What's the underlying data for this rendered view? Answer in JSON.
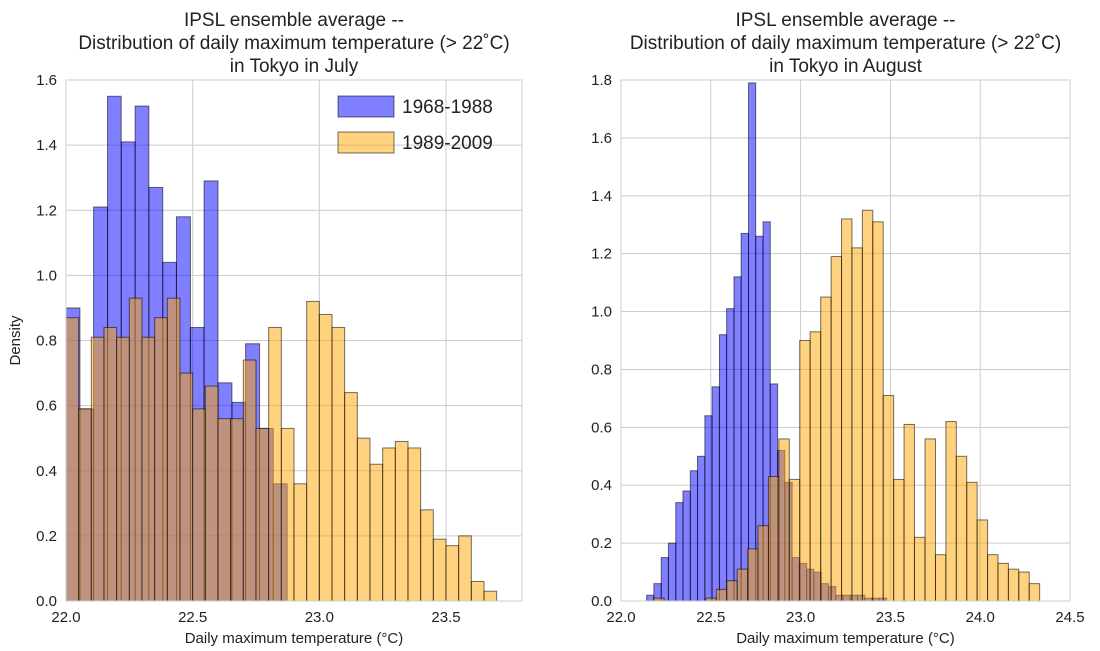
{
  "chart_data": [
    {
      "type": "bar",
      "title": [
        "IPSL ensemble average --",
        "Distribution of daily maximum temperature (> 22˚C)",
        "in Tokyo in July"
      ],
      "xlabel": "Daily maximum temperature (°C)",
      "ylabel": "Density",
      "xlim": [
        22.0,
        23.8
      ],
      "ylim": [
        0.0,
        1.6
      ],
      "xticks": [
        22.0,
        22.5,
        23.0,
        23.5
      ],
      "xtick_labels": [
        "22.0",
        "22.5",
        "23.0",
        "23.5"
      ],
      "yticks": [
        0.0,
        0.2,
        0.4,
        0.6,
        0.8,
        1.0,
        1.2,
        1.4,
        1.6
      ],
      "ytick_labels": [
        "0.0",
        "0.2",
        "0.4",
        "0.6",
        "0.8",
        "1.0",
        "1.2",
        "1.4",
        "1.6"
      ],
      "grid": true,
      "legend": {
        "placement": "top-right",
        "entries": [
          "1968-1988",
          "1989-2009"
        ]
      },
      "series": [
        {
          "name": "1968-1988",
          "color": "#0000ff",
          "bins": [
            [
              22.0,
              22.055
            ],
            [
              22.055,
              22.109
            ],
            [
              22.109,
              22.164
            ],
            [
              22.164,
              22.218
            ],
            [
              22.218,
              22.273
            ],
            [
              22.273,
              22.327
            ],
            [
              22.327,
              22.382
            ],
            [
              22.382,
              22.436
            ],
            [
              22.436,
              22.491
            ],
            [
              22.491,
              22.545
            ],
            [
              22.545,
              22.6
            ],
            [
              22.6,
              22.655
            ],
            [
              22.655,
              22.709
            ],
            [
              22.709,
              22.764
            ],
            [
              22.764,
              22.818
            ],
            [
              22.818,
              22.873
            ]
          ],
          "values": [
            0.9,
            0.59,
            1.21,
            1.55,
            1.41,
            1.52,
            1.27,
            1.04,
            1.18,
            0.84,
            1.29,
            0.67,
            0.61,
            0.79,
            0.53,
            0.36
          ]
        },
        {
          "name": "1989-2009",
          "color": "#ffa500",
          "bins": [
            [
              22.0,
              22.05
            ],
            [
              22.05,
              22.1
            ],
            [
              22.1,
              22.15
            ],
            [
              22.15,
              22.2
            ],
            [
              22.2,
              22.25
            ],
            [
              22.25,
              22.3
            ],
            [
              22.3,
              22.35
            ],
            [
              22.35,
              22.4
            ],
            [
              22.4,
              22.45
            ],
            [
              22.45,
              22.5
            ],
            [
              22.5,
              22.55
            ],
            [
              22.55,
              22.6
            ],
            [
              22.6,
              22.65
            ],
            [
              22.65,
              22.7
            ],
            [
              22.7,
              22.75
            ],
            [
              22.75,
              22.8
            ],
            [
              22.8,
              22.85
            ],
            [
              22.85,
              22.9
            ],
            [
              22.9,
              22.95
            ],
            [
              22.95,
              23.0
            ],
            [
              23.0,
              23.05
            ],
            [
              23.05,
              23.1
            ],
            [
              23.1,
              23.15
            ],
            [
              23.15,
              23.2
            ],
            [
              23.2,
              23.25
            ],
            [
              23.25,
              23.3
            ],
            [
              23.3,
              23.35
            ],
            [
              23.35,
              23.4
            ],
            [
              23.4,
              23.45
            ],
            [
              23.45,
              23.5
            ],
            [
              23.5,
              23.55
            ],
            [
              23.55,
              23.6
            ],
            [
              23.6,
              23.65
            ],
            [
              23.65,
              23.7
            ]
          ],
          "values": [
            0.87,
            0.59,
            0.81,
            0.84,
            0.81,
            0.93,
            0.81,
            0.87,
            0.93,
            0.7,
            0.59,
            0.66,
            0.56,
            0.56,
            0.74,
            0.53,
            0.84,
            0.53,
            0.36,
            0.92,
            0.88,
            0.84,
            0.64,
            0.5,
            0.42,
            0.47,
            0.49,
            0.47,
            0.28,
            0.19,
            0.17,
            0.2,
            0.06,
            0.03
          ]
        }
      ]
    },
    {
      "type": "bar",
      "title": [
        "IPSL ensemble average --",
        "Distribution of daily maximum temperature (> 22˚C)",
        "in Tokyo in August"
      ],
      "xlabel": "Daily maximum temperature (°C)",
      "ylabel": "",
      "xlim": [
        22.0,
        24.5
      ],
      "ylim": [
        0.0,
        1.8
      ],
      "xticks": [
        22.0,
        22.5,
        23.0,
        23.5,
        24.0,
        24.5
      ],
      "xtick_labels": [
        "22.0",
        "22.5",
        "23.0",
        "23.5",
        "24.0",
        "24.5"
      ],
      "yticks": [
        0.0,
        0.2,
        0.4,
        0.6,
        0.8,
        1.0,
        1.2,
        1.4,
        1.6,
        1.8
      ],
      "ytick_labels": [
        "0.0",
        "0.2",
        "0.4",
        "0.6",
        "0.8",
        "1.0",
        "1.2",
        "1.4",
        "1.6",
        "1.8"
      ],
      "grid": true,
      "legend": null,
      "series": [
        {
          "name": "1968-1988",
          "color": "#0000ff",
          "bins": [
            [
              22.143,
              22.183
            ],
            [
              22.183,
              22.224
            ],
            [
              22.224,
              22.264
            ],
            [
              22.264,
              22.305
            ],
            [
              22.305,
              22.345
            ],
            [
              22.345,
              22.386
            ],
            [
              22.386,
              22.426
            ],
            [
              22.426,
              22.467
            ],
            [
              22.467,
              22.507
            ],
            [
              22.507,
              22.548
            ],
            [
              22.548,
              22.588
            ],
            [
              22.588,
              22.629
            ],
            [
              22.629,
              22.669
            ],
            [
              22.669,
              22.71
            ],
            [
              22.71,
              22.75
            ],
            [
              22.75,
              22.791
            ],
            [
              22.791,
              22.831
            ],
            [
              22.831,
              22.872
            ],
            [
              22.872,
              22.912
            ],
            [
              22.912,
              22.953
            ],
            [
              22.953,
              22.993
            ],
            [
              22.993,
              23.034
            ],
            [
              23.034,
              23.074
            ],
            [
              23.074,
              23.115
            ],
            [
              23.115,
              23.155
            ],
            [
              23.155,
              23.196
            ],
            [
              23.196,
              23.236
            ],
            [
              23.236,
              23.276
            ],
            [
              23.276,
              23.317
            ],
            [
              23.317,
              23.357
            ],
            [
              23.357,
              23.398
            ],
            [
              23.398,
              23.438
            ],
            [
              23.438,
              23.479
            ]
          ],
          "values": [
            0.02,
            0.06,
            0.15,
            0.2,
            0.34,
            0.38,
            0.45,
            0.5,
            0.64,
            0.74,
            0.92,
            1.01,
            1.12,
            1.27,
            1.79,
            1.26,
            1.31,
            0.75,
            0.52,
            0.41,
            0.15,
            0.13,
            0.11,
            0.1,
            0.06,
            0.05,
            0.02,
            0.02,
            0.02,
            0.02,
            0.01,
            0.01,
            0.01
          ]
        },
        {
          "name": "1989-2009",
          "color": "#ffa500",
          "bins": [
            [
              22.182,
              22.24
            ],
            [
              22.24,
              22.298
            ],
            [
              22.298,
              22.356
            ],
            [
              22.356,
              22.414
            ],
            [
              22.414,
              22.472
            ],
            [
              22.472,
              22.531
            ],
            [
              22.531,
              22.589
            ],
            [
              22.589,
              22.647
            ],
            [
              22.647,
              22.705
            ],
            [
              22.705,
              22.763
            ],
            [
              22.763,
              22.821
            ],
            [
              22.821,
              22.879
            ],
            [
              22.879,
              22.937
            ],
            [
              22.937,
              22.995
            ],
            [
              22.995,
              23.053
            ],
            [
              23.053,
              23.112
            ],
            [
              23.112,
              23.17
            ],
            [
              23.17,
              23.228
            ],
            [
              23.228,
              23.286
            ],
            [
              23.286,
              23.344
            ],
            [
              23.344,
              23.402
            ],
            [
              23.402,
              23.46
            ],
            [
              23.46,
              23.518
            ],
            [
              23.518,
              23.576
            ],
            [
              23.576,
              23.634
            ],
            [
              23.634,
              23.693
            ],
            [
              23.693,
              23.751
            ],
            [
              23.751,
              23.809
            ],
            [
              23.809,
              23.867
            ],
            [
              23.867,
              23.925
            ],
            [
              23.925,
              23.983
            ],
            [
              23.983,
              24.041
            ],
            [
              24.041,
              24.099
            ],
            [
              24.099,
              24.157
            ],
            [
              24.157,
              24.215
            ],
            [
              24.215,
              24.273
            ],
            [
              24.273,
              24.331
            ]
          ],
          "values": [
            0.01,
            0.0,
            0.0,
            0.0,
            0.0,
            0.01,
            0.04,
            0.07,
            0.11,
            0.18,
            0.26,
            0.43,
            0.56,
            0.42,
            0.9,
            0.93,
            1.05,
            1.19,
            1.32,
            1.22,
            1.35,
            1.31,
            0.71,
            0.42,
            0.61,
            0.22,
            0.56,
            0.16,
            0.62,
            0.5,
            0.41,
            0.28,
            0.16,
            0.13,
            0.11,
            0.1,
            0.06
          ]
        }
      ]
    }
  ]
}
